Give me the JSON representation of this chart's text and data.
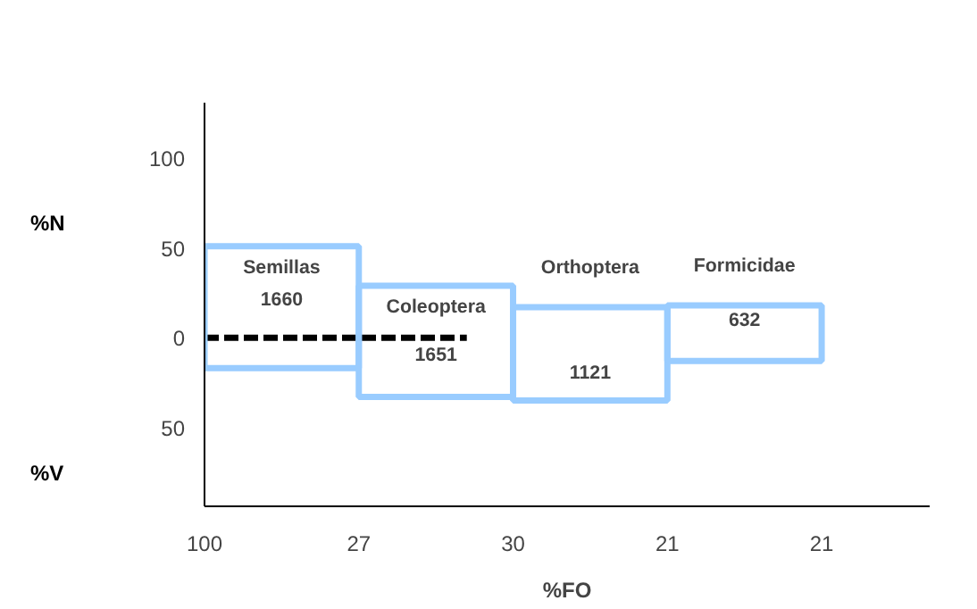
{
  "chart_data": {
    "type": "bar",
    "xlabel": "%FO",
    "ylabel": "%N",
    "categories": [
      "Semillas",
      "Coleoptera",
      "Orthoptera",
      "Formicidae"
    ],
    "values": [
      68,
      62,
      52,
      31
    ],
    "base": [
      -17,
      -33,
      -35,
      -13
    ],
    "color": "#99ccff",
    "ylim": [
      -94,
      131
    ],
    "yticks": [
      {
        "value": -50,
        "label": "50"
      },
      0,
      50,
      100
    ],
    "ref_lines": [
      {
        "axis": "y",
        "value": 0,
        "color": "#000000",
        "line_style": "dashed"
      }
    ],
    "annotations": [
      "%V",
      "100",
      "27",
      "30",
      "21",
      "21",
      "1660",
      "1651",
      "1121",
      "632"
    ],
    "grid": false
  }
}
